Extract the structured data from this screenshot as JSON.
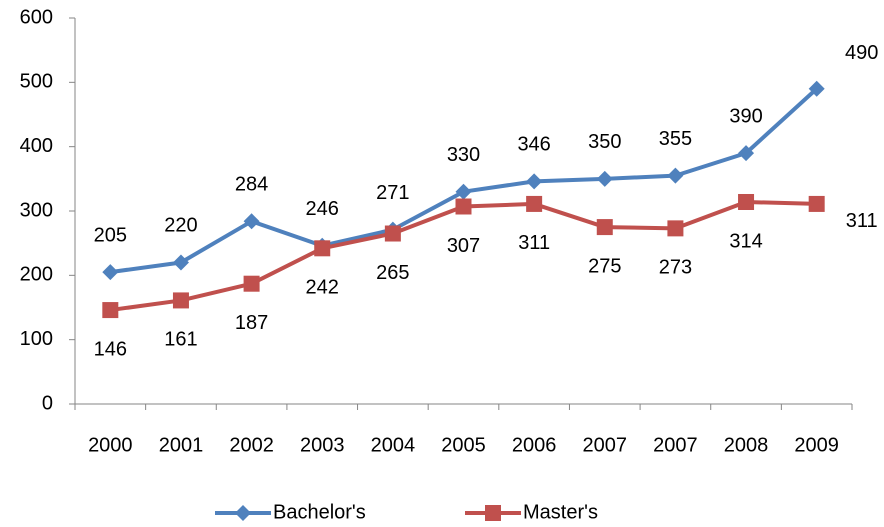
{
  "chart_data": {
    "type": "line",
    "categories": [
      "2000",
      "2001",
      "2002",
      "2003",
      "2004",
      "2005",
      "2006",
      "2007",
      "2007",
      "2008",
      "2009"
    ],
    "series": [
      {
        "name": "Bachelor's",
        "color": "#4f81bd",
        "marker": "diamond",
        "values": [
          205,
          220,
          284,
          246,
          271,
          330,
          346,
          350,
          355,
          390,
          490
        ]
      },
      {
        "name": "Master's",
        "color": "#c0504d",
        "marker": "square",
        "values": [
          146,
          161,
          187,
          242,
          265,
          307,
          311,
          275,
          273,
          314,
          311
        ]
      }
    ],
    "ylim": [
      0,
      600
    ],
    "yticks": [
      0,
      100,
      200,
      300,
      400,
      500,
      600
    ],
    "grid": false,
    "legend": "bottom"
  }
}
